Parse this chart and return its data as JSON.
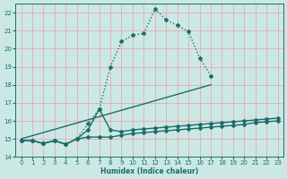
{
  "xlabel": "Humidex (Indice chaleur)",
  "xlim": [
    -0.5,
    23.5
  ],
  "ylim": [
    14,
    22.5
  ],
  "yticks": [
    14,
    15,
    16,
    17,
    18,
    19,
    20,
    21,
    22
  ],
  "xticks": [
    0,
    1,
    2,
    3,
    4,
    5,
    6,
    7,
    8,
    9,
    10,
    11,
    12,
    13,
    14,
    15,
    16,
    17,
    18,
    19,
    20,
    21,
    22,
    23
  ],
  "background_color": "#cce8e4",
  "grid_color": "#e8a0a8",
  "line_color": "#1a6e6a",
  "series": [
    {
      "x": [
        0,
        1,
        2,
        3,
        4,
        5,
        6,
        7,
        8,
        9,
        10,
        11,
        12,
        13,
        14,
        15,
        16,
        17
      ],
      "y": [
        14.9,
        14.9,
        14.75,
        14.9,
        14.7,
        15.0,
        15.85,
        16.65,
        19.0,
        20.4,
        20.75,
        20.85,
        22.2,
        21.6,
        21.3,
        20.95,
        19.5,
        18.5
      ],
      "marker": "D",
      "markersize": 2.0,
      "linewidth": 1.0,
      "linestyle": ":"
    },
    {
      "x": [
        0,
        1,
        2,
        3,
        4,
        5,
        6,
        7,
        8,
        9,
        10,
        11,
        12,
        13,
        14,
        15,
        16,
        17,
        18,
        19,
        20,
        21,
        22,
        23
      ],
      "y": [
        14.9,
        14.9,
        14.75,
        14.9,
        14.7,
        15.0,
        15.5,
        16.65,
        15.5,
        15.4,
        15.5,
        15.55,
        15.6,
        15.65,
        15.7,
        15.75,
        15.8,
        15.85,
        15.9,
        15.95,
        16.0,
        16.05,
        16.1,
        16.15
      ],
      "marker": "D",
      "markersize": 2.0,
      "linewidth": 1.0,
      "linestyle": "-"
    },
    {
      "x": [
        0,
        1,
        2,
        3,
        4,
        5,
        6,
        7,
        8,
        9,
        10,
        11,
        12,
        13,
        14,
        15,
        16,
        17,
        18,
        19,
        20,
        21,
        22,
        23
      ],
      "y": [
        14.9,
        14.9,
        14.75,
        14.9,
        14.7,
        15.0,
        15.1,
        15.1,
        15.1,
        15.2,
        15.3,
        15.35,
        15.4,
        15.45,
        15.5,
        15.55,
        15.6,
        15.65,
        15.7,
        15.75,
        15.8,
        15.9,
        15.95,
        16.0
      ],
      "marker": "D",
      "markersize": 2.0,
      "linewidth": 1.0,
      "linestyle": "-"
    },
    {
      "x": [
        0,
        17
      ],
      "y": [
        15.0,
        18.0
      ],
      "marker": null,
      "markersize": 0,
      "linewidth": 1.0,
      "linestyle": "-"
    }
  ]
}
